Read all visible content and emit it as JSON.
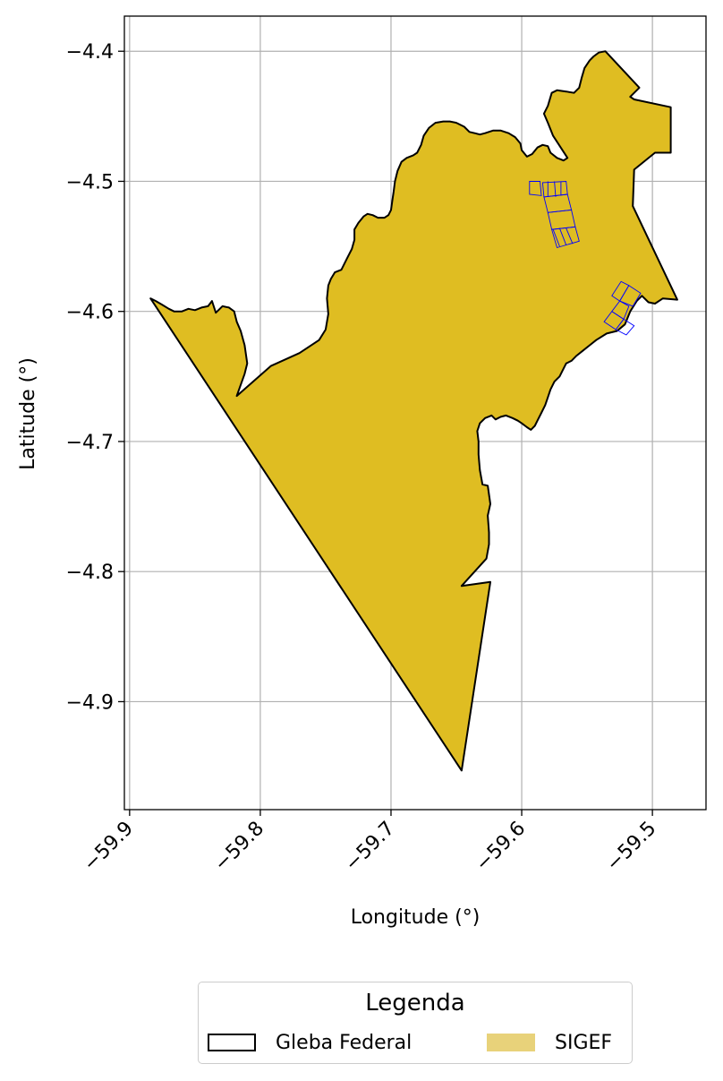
{
  "chart_data": {
    "type": "map",
    "title": "",
    "xlabel": "Longitude (°)",
    "ylabel": "Latitude (°)",
    "xlim": [
      -59.904,
      -59.459
    ],
    "ylim": [
      -4.983,
      -4.373
    ],
    "xticks": [
      -59.9,
      -59.8,
      -59.7,
      -59.6,
      -59.5
    ],
    "xtick_labels": [
      "−59.9",
      "−59.8",
      "−59.7",
      "−59.6",
      "−59.5"
    ],
    "yticks": [
      -4.4,
      -4.5,
      -4.6,
      -4.7,
      -4.8,
      -4.9
    ],
    "ytick_labels": [
      "−4.4",
      "−4.5",
      "−4.6",
      "−4.7",
      "−4.8",
      "−4.9"
    ],
    "grid": true,
    "legend": {
      "title": "Legenda",
      "placement": "bottom-center",
      "entries": [
        {
          "label": "Gleba Federal",
          "style": "outline",
          "color": "#000000"
        },
        {
          "label": "SIGEF",
          "style": "fill",
          "color": "#e8d27a"
        }
      ]
    },
    "colors": {
      "gleba_fill": "#dfbd22",
      "gleba_edge": "#000000",
      "parcel_edge": "#0000ff"
    },
    "series": [
      {
        "name": "Gleba Federal",
        "kind": "polygon",
        "points": [
          [
            -59.884,
            -4.59
          ],
          [
            -59.88,
            -4.592
          ],
          [
            -59.875,
            -4.595
          ],
          [
            -59.87,
            -4.598
          ],
          [
            -59.866,
            -4.6
          ],
          [
            -59.86,
            -4.6
          ],
          [
            -59.855,
            -4.598
          ],
          [
            -59.85,
            -4.599
          ],
          [
            -59.845,
            -4.597
          ],
          [
            -59.84,
            -4.596
          ],
          [
            -59.837,
            -4.592
          ],
          [
            -59.834,
            -4.601
          ],
          [
            -59.829,
            -4.596
          ],
          [
            -59.824,
            -4.597
          ],
          [
            -59.82,
            -4.6
          ],
          [
            -59.818,
            -4.608
          ],
          [
            -59.815,
            -4.615
          ],
          [
            -59.812,
            -4.626
          ],
          [
            -59.81,
            -4.64
          ],
          [
            -59.812,
            -4.648
          ],
          [
            -59.818,
            -4.665
          ],
          [
            -59.792,
            -4.642
          ],
          [
            -59.77,
            -4.632
          ],
          [
            -59.755,
            -4.622
          ],
          [
            -59.75,
            -4.614
          ],
          [
            -59.748,
            -4.602
          ],
          [
            -59.749,
            -4.59
          ],
          [
            -59.748,
            -4.58
          ],
          [
            -59.746,
            -4.575
          ],
          [
            -59.743,
            -4.57
          ],
          [
            -59.738,
            -4.568
          ],
          [
            -59.734,
            -4.56
          ],
          [
            -59.73,
            -4.552
          ],
          [
            -59.728,
            -4.545
          ],
          [
            -59.728,
            -4.537
          ],
          [
            -59.725,
            -4.532
          ],
          [
            -59.721,
            -4.527
          ],
          [
            -59.718,
            -4.525
          ],
          [
            -59.714,
            -4.526
          ],
          [
            -59.71,
            -4.528
          ],
          [
            -59.705,
            -4.528
          ],
          [
            -59.702,
            -4.526
          ],
          [
            -59.7,
            -4.522
          ],
          [
            -59.699,
            -4.515
          ],
          [
            -59.698,
            -4.508
          ],
          [
            -59.697,
            -4.5
          ],
          [
            -59.695,
            -4.492
          ],
          [
            -59.692,
            -4.485
          ],
          [
            -59.688,
            -4.482
          ],
          [
            -59.683,
            -4.48
          ],
          [
            -59.68,
            -4.478
          ],
          [
            -59.677,
            -4.472
          ],
          [
            -59.675,
            -4.465
          ],
          [
            -59.671,
            -4.459
          ],
          [
            -59.666,
            -4.455
          ],
          [
            -59.66,
            -4.454
          ],
          [
            -59.655,
            -4.454
          ],
          [
            -59.65,
            -4.455
          ],
          [
            -59.644,
            -4.458
          ],
          [
            -59.64,
            -4.462
          ],
          [
            -59.636,
            -4.463
          ],
          [
            -59.632,
            -4.464
          ],
          [
            -59.628,
            -4.463
          ],
          [
            -59.622,
            -4.461
          ],
          [
            -59.616,
            -4.461
          ],
          [
            -59.61,
            -4.463
          ],
          [
            -59.605,
            -4.466
          ],
          [
            -59.601,
            -4.471
          ],
          [
            -59.6,
            -4.476
          ],
          [
            -59.596,
            -4.481
          ],
          [
            -59.592,
            -4.479
          ],
          [
            -59.588,
            -4.474
          ],
          [
            -59.584,
            -4.472
          ],
          [
            -59.58,
            -4.473
          ],
          [
            -59.578,
            -4.478
          ],
          [
            -59.573,
            -4.482
          ],
          [
            -59.568,
            -4.484
          ],
          [
            -59.565,
            -4.482
          ],
          [
            -59.576,
            -4.465
          ],
          [
            -59.58,
            -4.455
          ],
          [
            -59.583,
            -4.448
          ],
          [
            -59.58,
            -4.442
          ],
          [
            -59.577,
            -4.432
          ],
          [
            -59.573,
            -4.43
          ],
          [
            -59.566,
            -4.431
          ],
          [
            -59.56,
            -4.432
          ],
          [
            -59.556,
            -4.428
          ],
          [
            -59.554,
            -4.42
          ],
          [
            -59.552,
            -4.413
          ],
          [
            -59.548,
            -4.407
          ],
          [
            -59.545,
            -4.404
          ],
          [
            -59.541,
            -4.401
          ],
          [
            -59.536,
            -4.4
          ],
          [
            -59.51,
            -4.428
          ],
          [
            -59.517,
            -4.435
          ],
          [
            -59.514,
            -4.437
          ],
          [
            -59.486,
            -4.443
          ],
          [
            -59.486,
            -4.478
          ],
          [
            -59.498,
            -4.478
          ],
          [
            -59.514,
            -4.491
          ],
          [
            -59.515,
            -4.519
          ],
          [
            -59.481,
            -4.591
          ],
          [
            -59.492,
            -4.59
          ],
          [
            -59.498,
            -4.594
          ],
          [
            -59.503,
            -4.593
          ],
          [
            -59.508,
            -4.588
          ],
          [
            -59.512,
            -4.592
          ],
          [
            -59.517,
            -4.6
          ],
          [
            -59.521,
            -4.61
          ],
          [
            -59.527,
            -4.615
          ],
          [
            -59.535,
            -4.617
          ],
          [
            -59.543,
            -4.622
          ],
          [
            -59.548,
            -4.626
          ],
          [
            -59.553,
            -4.63
          ],
          [
            -59.558,
            -4.634
          ],
          [
            -59.562,
            -4.638
          ],
          [
            -59.566,
            -4.64
          ],
          [
            -59.568,
            -4.644
          ],
          [
            -59.571,
            -4.65
          ],
          [
            -59.575,
            -4.654
          ],
          [
            -59.578,
            -4.66
          ],
          [
            -59.58,
            -4.666
          ],
          [
            -59.582,
            -4.672
          ],
          [
            -59.585,
            -4.678
          ],
          [
            -59.588,
            -4.684
          ],
          [
            -59.59,
            -4.688
          ],
          [
            -59.593,
            -4.691
          ],
          [
            -59.596,
            -4.689
          ],
          [
            -59.6,
            -4.686
          ],
          [
            -59.603,
            -4.684
          ],
          [
            -59.607,
            -4.682
          ],
          [
            -59.612,
            -4.68
          ],
          [
            -59.616,
            -4.681
          ],
          [
            -59.62,
            -4.683
          ],
          [
            -59.623,
            -4.68
          ],
          [
            -59.628,
            -4.682
          ],
          [
            -59.632,
            -4.686
          ],
          [
            -59.634,
            -4.692
          ],
          [
            -59.633,
            -4.7
          ],
          [
            -59.633,
            -4.71
          ],
          [
            -59.632,
            -4.722
          ],
          [
            -59.63,
            -4.733
          ],
          [
            -59.626,
            -4.734
          ],
          [
            -59.624,
            -4.748
          ],
          [
            -59.626,
            -4.757
          ],
          [
            -59.625,
            -4.77
          ],
          [
            -59.625,
            -4.779
          ],
          [
            -59.627,
            -4.79
          ],
          [
            -59.646,
            -4.811
          ],
          [
            -59.624,
            -4.808
          ],
          [
            -59.646,
            -4.953
          ],
          [
            -59.884,
            -4.59
          ]
        ]
      },
      {
        "name": "SIGEF",
        "kind": "polygons",
        "polygons": [
          [
            [
              -59.584,
              -4.501
            ],
            [
              -59.566,
              -4.5
            ],
            [
              -59.565,
              -4.51
            ],
            [
              -59.583,
              -4.512
            ]
          ],
          [
            [
              -59.583,
              -4.512
            ],
            [
              -59.565,
              -4.51
            ],
            [
              -59.562,
              -4.522
            ],
            [
              -59.58,
              -4.524
            ]
          ],
          [
            [
              -59.58,
              -4.524
            ],
            [
              -59.562,
              -4.522
            ],
            [
              -59.559,
              -4.535
            ],
            [
              -59.577,
              -4.537
            ]
          ],
          [
            [
              -59.577,
              -4.537
            ],
            [
              -59.559,
              -4.535
            ],
            [
              -59.556,
              -4.546
            ],
            [
              -59.573,
              -4.551
            ]
          ],
          [
            [
              -59.594,
              -4.5
            ],
            [
              -59.586,
              -4.5
            ],
            [
              -59.585,
              -4.511
            ],
            [
              -59.594,
              -4.51
            ]
          ],
          [
            [
              -59.58,
              -4.5
            ],
            [
              -59.58,
              -4.512
            ]
          ],
          [
            [
              -59.575,
              -4.5
            ],
            [
              -59.574,
              -4.512
            ]
          ],
          [
            [
              -59.57,
              -4.5
            ],
            [
              -59.57,
              -4.511
            ]
          ],
          [
            [
              -59.576,
              -4.537
            ],
            [
              -59.571,
              -4.55
            ]
          ],
          [
            [
              -59.571,
              -4.536
            ],
            [
              -59.566,
              -4.549
            ]
          ],
          [
            [
              -59.566,
              -4.536
            ],
            [
              -59.561,
              -4.548
            ]
          ],
          [
            [
              -59.531,
              -4.588
            ],
            [
              -59.524,
              -4.577
            ],
            [
              -59.518,
              -4.58
            ],
            [
              -59.525,
              -4.592
            ]
          ],
          [
            [
              -59.525,
              -4.592
            ],
            [
              -59.518,
              -4.58
            ],
            [
              -59.509,
              -4.586
            ],
            [
              -59.515,
              -4.596
            ]
          ],
          [
            [
              -59.537,
              -4.608
            ],
            [
              -59.531,
              -4.6
            ],
            [
              -59.522,
              -4.606
            ],
            [
              -59.528,
              -4.614
            ]
          ],
          [
            [
              -59.528,
              -4.614
            ],
            [
              -59.522,
              -4.606
            ],
            [
              -59.514,
              -4.611
            ],
            [
              -59.52,
              -4.618
            ]
          ],
          [
            [
              -59.531,
              -4.6
            ],
            [
              -59.525,
              -4.592
            ],
            [
              -59.518,
              -4.596
            ],
            [
              -59.522,
              -4.606
            ]
          ]
        ]
      }
    ]
  }
}
